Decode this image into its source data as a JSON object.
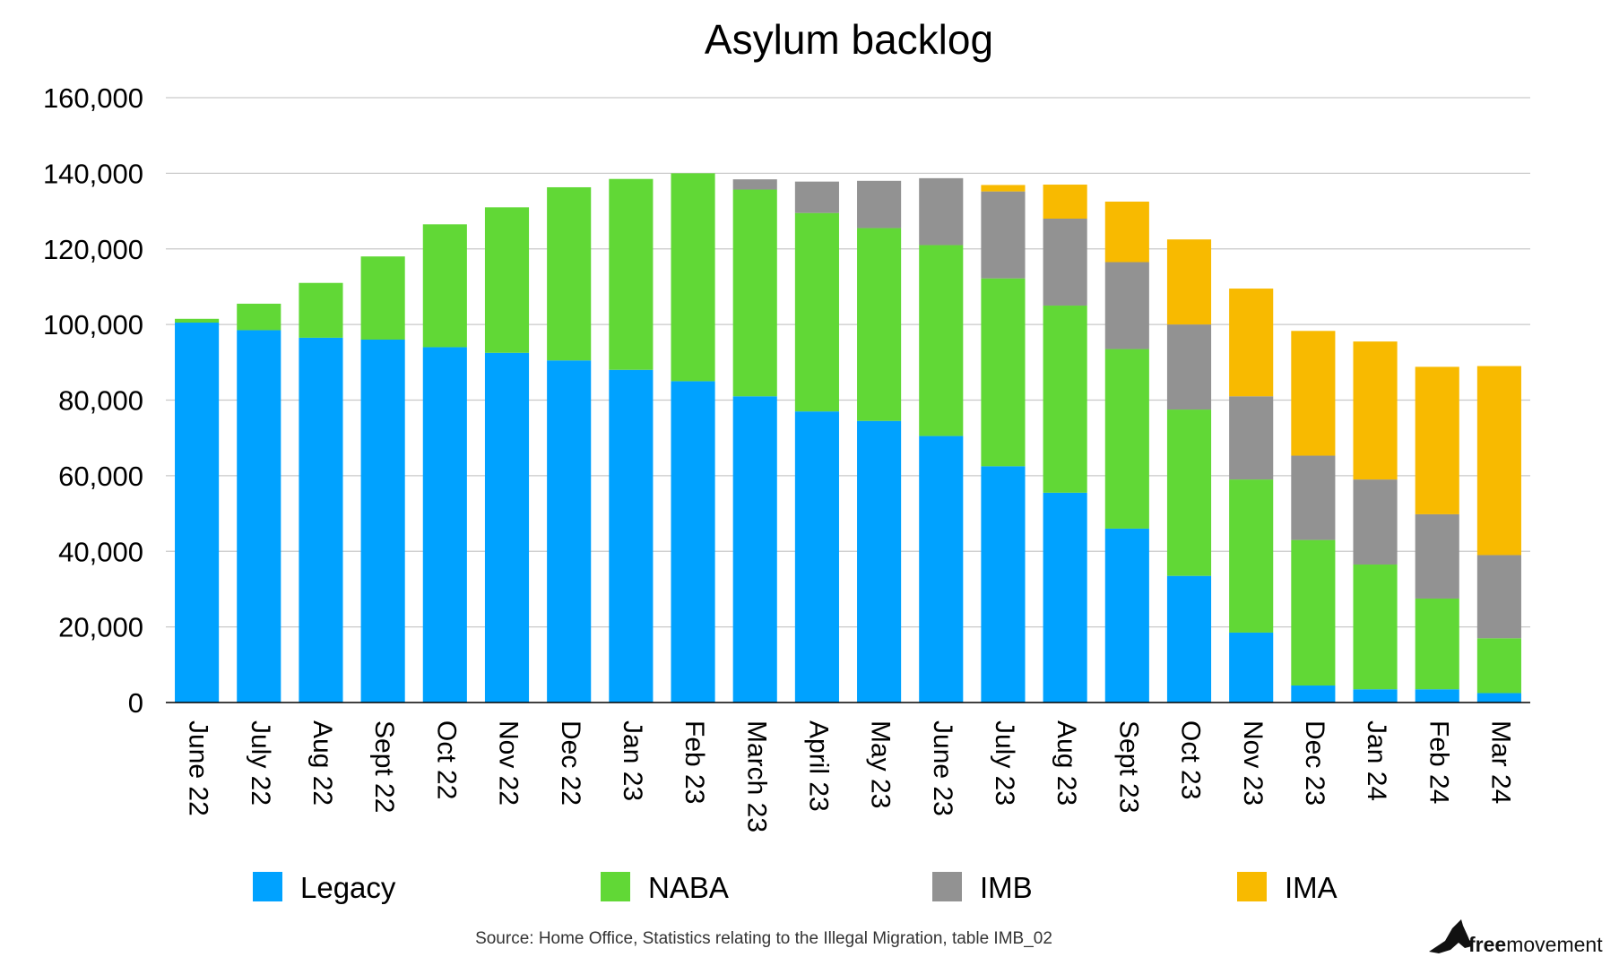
{
  "chart_data": {
    "type": "bar",
    "stacked": true,
    "title": "Asylum backlog",
    "xlabel": "",
    "ylabel": "",
    "ylim": [
      0,
      160000
    ],
    "yticks": [
      0,
      20000,
      40000,
      60000,
      80000,
      100000,
      120000,
      140000,
      160000
    ],
    "ytick_labels": [
      "0",
      "20,000",
      "40,000",
      "60,000",
      "80,000",
      "100,000",
      "120,000",
      "140,000",
      "160,000"
    ],
    "grid": true,
    "legend_position": "bottom",
    "categories": [
      "June 22",
      "July 22",
      "Aug 22",
      "Sept 22",
      "Oct 22",
      "Nov 22",
      "Dec 22",
      "Jan 23",
      "Feb 23",
      "March 23",
      "April 23",
      "May 23",
      "June 23",
      "July 23",
      "Aug 23",
      "Sept 23",
      "Oct 23",
      "Nov 23",
      "Dec 23",
      "Jan 24",
      "Feb 24",
      "Mar 24"
    ],
    "series": [
      {
        "name": "Legacy",
        "color": "#00A2FF",
        "values": [
          100500,
          98500,
          96500,
          96000,
          94000,
          92500,
          90500,
          88000,
          85000,
          81000,
          77000,
          74500,
          70500,
          62500,
          55500,
          46000,
          33500,
          18500,
          4500,
          3500,
          3500,
          2500
        ]
      },
      {
        "name": "NABA",
        "color": "#61D836",
        "values": [
          1000,
          7000,
          14500,
          22000,
          32500,
          38500,
          45800,
          50500,
          55000,
          54700,
          52500,
          51000,
          50500,
          49700,
          49500,
          47500,
          44000,
          40500,
          38500,
          33000,
          24000,
          14500
        ]
      },
      {
        "name": "IMB",
        "color": "#929292",
        "values": [
          0,
          0,
          0,
          0,
          0,
          0,
          0,
          0,
          0,
          2700,
          8300,
          12500,
          17700,
          23000,
          23000,
          23000,
          22500,
          22000,
          22300,
          22500,
          22300,
          22000
        ]
      },
      {
        "name": "IMA",
        "color": "#F8BA00",
        "values": [
          0,
          0,
          0,
          0,
          0,
          0,
          0,
          0,
          0,
          0,
          0,
          0,
          0,
          1700,
          9000,
          16000,
          22500,
          28500,
          33000,
          36500,
          39000,
          50000
        ]
      }
    ]
  },
  "source_text": "Source: Home Office, Statistics relating to the Illegal Migration, table IMB_02",
  "logo": {
    "text_bold": "free",
    "text_rest": "movement",
    "icon": "bird-icon"
  }
}
